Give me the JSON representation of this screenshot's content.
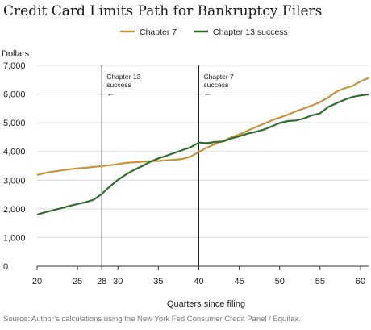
{
  "chart_data": {
    "type": "line",
    "title": "Credit Card Limits Path for Bankruptcy Filers",
    "ylabel": "Dollars",
    "xlabel": "Quarters since filing",
    "source": "Source: Author’s calculations using the New York Fed Consumer Credit Panel / Equifax.",
    "xlim": [
      20,
      61
    ],
    "ylim": [
      0,
      7000
    ],
    "x_ticks": [
      20,
      25,
      28,
      30,
      35,
      40,
      45,
      50,
      55,
      60
    ],
    "y_ticks": [
      0,
      1000,
      2000,
      3000,
      4000,
      5000,
      6000,
      7000
    ],
    "y_tick_labels": [
      "0",
      "1,000",
      "2,000",
      "3,000",
      "4,000",
      "5,000",
      "6,000",
      "7,000"
    ],
    "grid": "horizontal",
    "legend_position": "top",
    "series": [
      {
        "name": "Chapter 7",
        "color": "#C8943A",
        "x": [
          20,
          21,
          22,
          23,
          24,
          25,
          26,
          27,
          28,
          29,
          30,
          31,
          32,
          33,
          34,
          35,
          36,
          37,
          38,
          39,
          40,
          41,
          42,
          43,
          44,
          45,
          46,
          47,
          48,
          49,
          50,
          51,
          52,
          53,
          54,
          55,
          56,
          57,
          58,
          59,
          60,
          61
        ],
        "values": [
          3180,
          3250,
          3300,
          3340,
          3380,
          3410,
          3430,
          3460,
          3490,
          3520,
          3560,
          3600,
          3620,
          3640,
          3660,
          3670,
          3690,
          3710,
          3740,
          3820,
          3980,
          4130,
          4260,
          4360,
          4490,
          4590,
          4720,
          4840,
          4960,
          5080,
          5180,
          5280,
          5400,
          5500,
          5600,
          5720,
          5880,
          6080,
          6200,
          6280,
          6440,
          6560
        ]
      },
      {
        "name": "Chapter 13 success",
        "color": "#2E6F2E",
        "x": [
          20,
          21,
          22,
          23,
          24,
          25,
          26,
          27,
          28,
          29,
          30,
          31,
          32,
          33,
          34,
          35,
          36,
          37,
          38,
          39,
          40,
          41,
          42,
          43,
          44,
          45,
          46,
          47,
          48,
          49,
          50,
          51,
          52,
          53,
          54,
          55,
          56,
          57,
          58,
          59,
          60,
          61
        ],
        "values": [
          1800,
          1880,
          1950,
          2020,
          2100,
          2170,
          2230,
          2320,
          2520,
          2780,
          3010,
          3200,
          3360,
          3490,
          3640,
          3760,
          3850,
          3950,
          4050,
          4150,
          4310,
          4290,
          4330,
          4350,
          4450,
          4530,
          4620,
          4680,
          4760,
          4870,
          4990,
          5060,
          5080,
          5150,
          5260,
          5330,
          5550,
          5680,
          5800,
          5900,
          5950,
          5990
        ]
      }
    ],
    "annotations": [
      {
        "x": 28,
        "lines": [
          "Chapter 13",
          "success"
        ],
        "arrow": "←"
      },
      {
        "x": 40,
        "lines": [
          "Chapter 7",
          "success"
        ],
        "arrow": "←"
      }
    ]
  }
}
